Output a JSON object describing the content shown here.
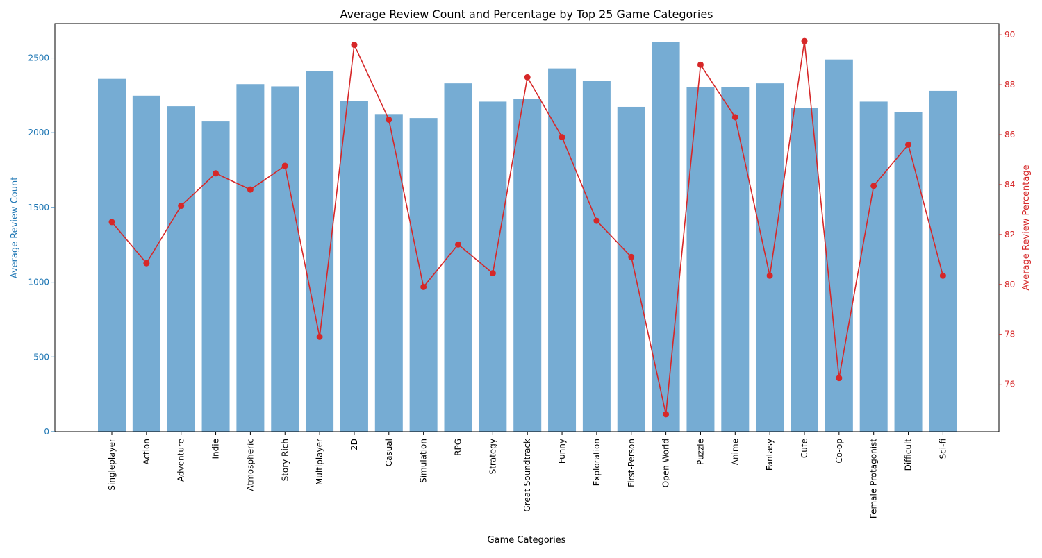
{
  "chart_data": {
    "type": "bar",
    "title": "Average Review Count and Percentage by Top 25 Game Categories",
    "xlabel": "Game Categories",
    "ylabel": "Average Review Count",
    "y2label": "Average Review Percentage",
    "categories": [
      "Singleplayer",
      "Action",
      "Adventure",
      "Indie",
      "Atmospheric",
      "Story Rich",
      "Multiplayer",
      "2D",
      "Casual",
      "Simulation",
      "RPG",
      "Strategy",
      "Great Soundtrack",
      "Funny",
      "Exploration",
      "First-Person",
      "Open World",
      "Puzzle",
      "Anime",
      "Fantasy",
      "Cute",
      "Co-op",
      "Female Protagonist",
      "Difficult",
      "Sci-fi"
    ],
    "series": [
      {
        "type": "bar",
        "axis": "left",
        "color": "#76acd3",
        "values": [
          2360,
          2248,
          2177,
          2075,
          2325,
          2310,
          2410,
          2213,
          2125,
          2098,
          2330,
          2208,
          2228,
          2430,
          2345,
          2173,
          2605,
          2305,
          2303,
          2330,
          2165,
          2490,
          2208,
          2140,
          2280
        ]
      },
      {
        "type": "line",
        "axis": "right",
        "color": "#d62728",
        "values": [
          82.5,
          80.85,
          83.15,
          84.45,
          83.8,
          84.75,
          77.9,
          89.6,
          86.6,
          79.9,
          81.6,
          80.45,
          88.3,
          85.9,
          82.55,
          81.1,
          74.8,
          88.8,
          86.7,
          80.35,
          89.75,
          76.25,
          83.95,
          85.6,
          80.35
        ]
      }
    ],
    "ylim": [
      0,
      2730
    ],
    "y2lim": [
      74.1,
      90.45
    ],
    "yticks": [
      0,
      500,
      1000,
      1500,
      2000,
      2500
    ],
    "y2ticks": [
      76,
      78,
      80,
      82,
      84,
      86,
      88,
      90
    ],
    "left_axis_color": "#1f77b4",
    "right_axis_color": "#d62728",
    "grid": false
  }
}
